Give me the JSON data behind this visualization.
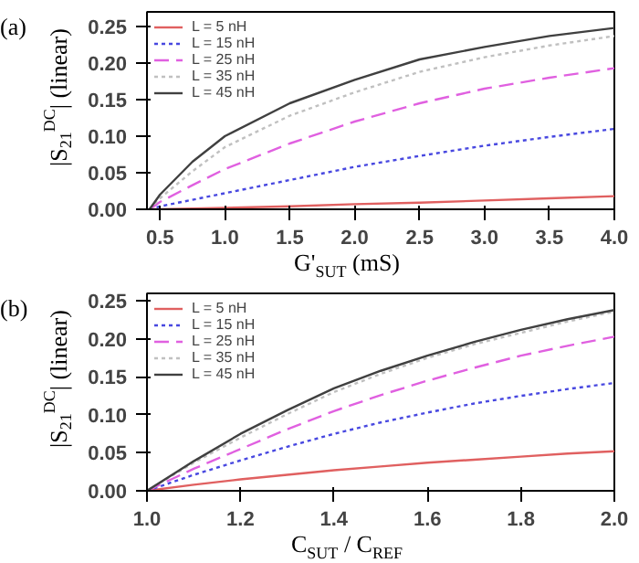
{
  "chart_data": [
    {
      "type": "line",
      "annotations": [
        "(a)"
      ],
      "xlabel": "G'$_{SUT}$ (mS)",
      "ylabel": "|S$_{21}$$^{DC}$| (linear)",
      "xlim": [
        0.4,
        4.0
      ],
      "ylim": [
        0,
        0.27
      ],
      "xticks": [
        {
          "value": 0.5,
          "label": "0.5"
        },
        {
          "value": 1.0,
          "label": "1.0"
        },
        {
          "value": 1.5,
          "label": "1.5"
        },
        {
          "value": 2.0,
          "label": "2.0"
        },
        {
          "value": 2.5,
          "label": "2.5"
        },
        {
          "value": 3.0,
          "label": "3.0"
        },
        {
          "value": 3.5,
          "label": "3.5"
        },
        {
          "value": 4.0,
          "label": "4.0"
        }
      ],
      "yticks": [
        {
          "value": 0,
          "label": "0.00"
        },
        {
          "value": 0.05,
          "label": "0.05"
        },
        {
          "value": 0.1,
          "label": "0.10"
        },
        {
          "value": 0.15,
          "label": "0.15"
        },
        {
          "value": 0.2,
          "label": "0.20"
        },
        {
          "value": 0.25,
          "label": "0.25"
        }
      ],
      "grid": false,
      "legend": "top left",
      "x": [
        0.42,
        0.5,
        0.75,
        1.0,
        1.5,
        2.0,
        2.5,
        3.0,
        3.5,
        4.0
      ],
      "series": [
        {
          "name": "L = 5 nH",
          "color": "#e06060",
          "line_style": "solid",
          "values": [
            0,
            0.0,
            0.001,
            0.002,
            0.004,
            0.007,
            0.009,
            0.012,
            0.015,
            0.018
          ]
        },
        {
          "name": "L = 15 nH",
          "color": "#4848e0",
          "line_style": "dotted",
          "values": [
            0,
            0.004,
            0.013,
            0.022,
            0.04,
            0.058,
            0.073,
            0.087,
            0.099,
            0.11
          ]
        },
        {
          "name": "L = 25 nH",
          "color": "#e060e0",
          "line_style": "dashed",
          "values": [
            0,
            0.01,
            0.033,
            0.055,
            0.09,
            0.12,
            0.145,
            0.165,
            0.18,
            0.193
          ]
        },
        {
          "name": "L = 35 nH",
          "color": "#c0c0c0",
          "line_style": "dotted",
          "values": [
            0,
            0.015,
            0.052,
            0.085,
            0.128,
            0.16,
            0.188,
            0.208,
            0.224,
            0.237
          ]
        },
        {
          "name": "L = 45 nH",
          "color": "#404040",
          "line_style": "solid",
          "values": [
            0,
            0.02,
            0.065,
            0.1,
            0.145,
            0.177,
            0.205,
            0.222,
            0.237,
            0.248
          ]
        }
      ]
    },
    {
      "type": "line",
      "annotations": [
        "(b)"
      ],
      "xlabel": "C$_{SUT}$ / C$_{REF}$",
      "ylabel": "|S$_{21}$$^{DC}$| (linear)",
      "xlim": [
        1.0,
        2.0
      ],
      "ylim": [
        0,
        0.26
      ],
      "xticks": [
        {
          "value": 1.0,
          "label": "1.0"
        },
        {
          "value": 1.2,
          "label": "1.2"
        },
        {
          "value": 1.4,
          "label": "1.4"
        },
        {
          "value": 1.6,
          "label": "1.6"
        },
        {
          "value": 1.8,
          "label": "1.8"
        },
        {
          "value": 2.0,
          "label": "2.0"
        }
      ],
      "yticks": [
        {
          "value": 0,
          "label": "0.00"
        },
        {
          "value": 0.05,
          "label": "0.05"
        },
        {
          "value": 0.1,
          "label": "0.10"
        },
        {
          "value": 0.15,
          "label": "0.15"
        },
        {
          "value": 0.2,
          "label": "0.20"
        },
        {
          "value": 0.25,
          "label": "0.25"
        }
      ],
      "grid": false,
      "legend": "top left",
      "x": [
        1.0,
        1.1,
        1.2,
        1.3,
        1.4,
        1.5,
        1.6,
        1.7,
        1.8,
        1.9,
        2.0
      ],
      "series": [
        {
          "name": "L = 5 nH",
          "color": "#e06060",
          "line_style": "solid",
          "values": [
            0,
            0.008,
            0.015,
            0.021,
            0.027,
            0.032,
            0.037,
            0.041,
            0.045,
            0.049,
            0.052
          ]
        },
        {
          "name": "L = 15 nH",
          "color": "#4848e0",
          "line_style": "dotted",
          "values": [
            0,
            0.021,
            0.04,
            0.058,
            0.075,
            0.09,
            0.103,
            0.115,
            0.125,
            0.134,
            0.142
          ]
        },
        {
          "name": "L = 25 nH",
          "color": "#e060e0",
          "line_style": "dashed",
          "values": [
            0,
            0.029,
            0.055,
            0.081,
            0.105,
            0.126,
            0.145,
            0.162,
            0.178,
            0.191,
            0.203
          ]
        },
        {
          "name": "L = 35 nH",
          "color": "#c0c0c0",
          "line_style": "dotted",
          "values": [
            0,
            0.037,
            0.07,
            0.101,
            0.13,
            0.154,
            0.175,
            0.193,
            0.208,
            0.223,
            0.236
          ]
        },
        {
          "name": "L = 45 nH",
          "color": "#404040",
          "line_style": "solid",
          "values": [
            0,
            0.039,
            0.075,
            0.106,
            0.135,
            0.158,
            0.178,
            0.196,
            0.212,
            0.226,
            0.238
          ]
        }
      ]
    }
  ]
}
